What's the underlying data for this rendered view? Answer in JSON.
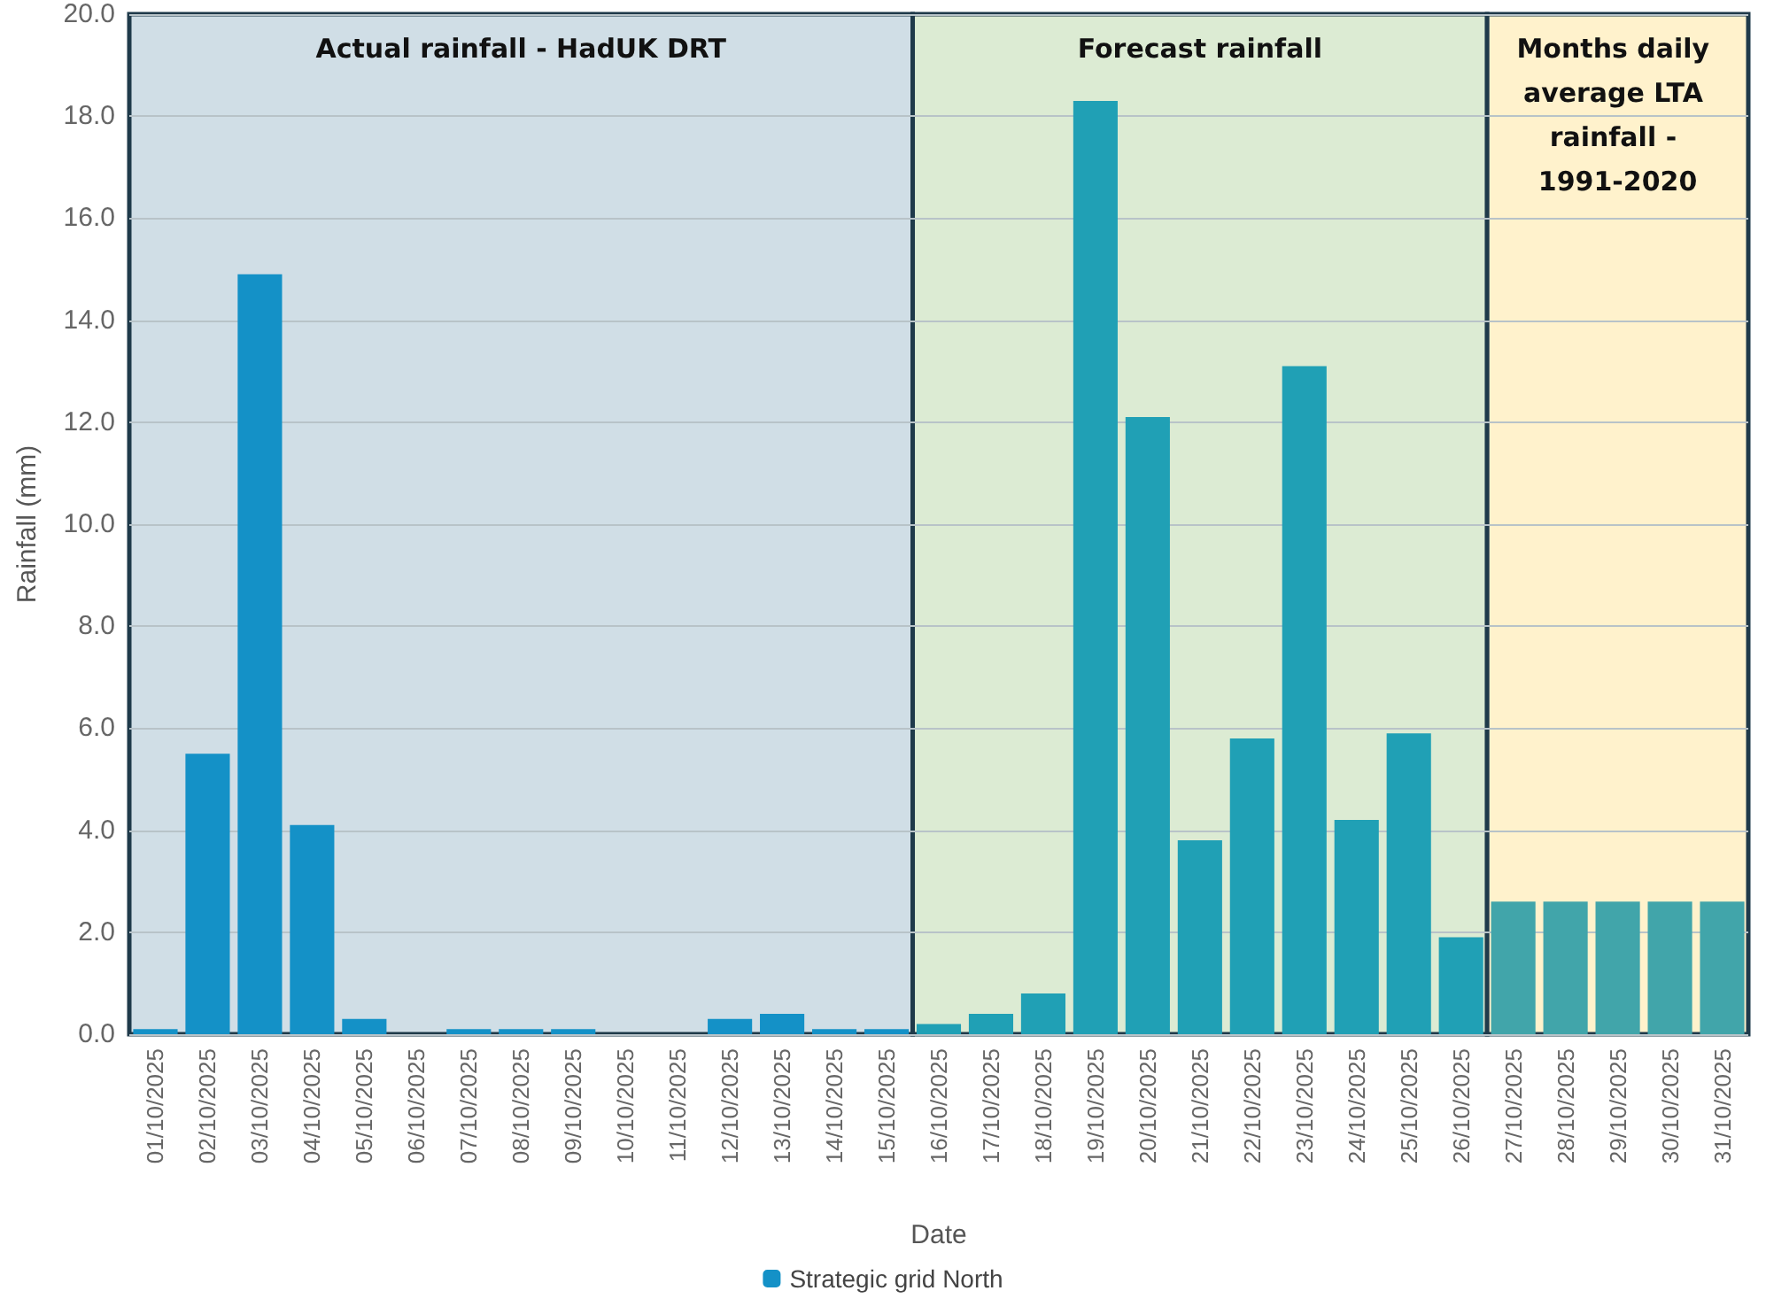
{
  "chart_data": {
    "type": "bar",
    "xlabel": "Date",
    "ylabel": "Rainfall (mm)",
    "categories": [
      "01/10/2025",
      "02/10/2025",
      "03/10/2025",
      "04/10/2025",
      "05/10/2025",
      "06/10/2025",
      "07/10/2025",
      "08/10/2025",
      "09/10/2025",
      "10/10/2025",
      "11/10/2025",
      "12/10/2025",
      "13/10/2025",
      "14/10/2025",
      "15/10/2025",
      "16/10/2025",
      "17/10/2025",
      "18/10/2025",
      "19/10/2025",
      "20/10/2025",
      "21/10/2025",
      "22/10/2025",
      "23/10/2025",
      "24/10/2025",
      "25/10/2025",
      "26/10/2025",
      "27/10/2025",
      "28/10/2025",
      "29/10/2025",
      "30/10/2025",
      "31/10/2025"
    ],
    "series": [
      {
        "name": "Strategic grid North",
        "values": [
          0.1,
          5.5,
          14.9,
          4.1,
          0.3,
          0,
          0.1,
          0.1,
          0.1,
          0,
          0,
          0.3,
          0.4,
          0.1,
          0.1,
          0.2,
          0.4,
          0.8,
          18.3,
          12.1,
          3.8,
          5.8,
          13.1,
          4.2,
          5.9,
          1.9,
          2.6,
          2.6,
          2.6,
          2.6,
          2.6
        ],
        "colors": [
          "#1491c7",
          "#1491c7",
          "#1491c7",
          "#1491c7",
          "#1491c7",
          "#1491c7",
          "#1491c7",
          "#1491c7",
          "#1491c7",
          "#1491c7",
          "#1491c7",
          "#1491c7",
          "#1491c7",
          "#1491c7",
          "#1491c7",
          "#20a0b5",
          "#20a0b5",
          "#20a0b5",
          "#20a0b5",
          "#20a0b5",
          "#20a0b5",
          "#20a0b5",
          "#20a0b5",
          "#20a0b5",
          "#20a0b5",
          "#20a0b5",
          "#41a5aa",
          "#41a5aa",
          "#41a5aa",
          "#41a5aa",
          "#41a5aa"
        ]
      }
    ],
    "ylim": [
      0,
      20
    ],
    "yticks": [
      {
        "value": 0,
        "label": "0.0"
      },
      {
        "value": 2,
        "label": "2.0"
      },
      {
        "value": 4,
        "label": "4.0"
      },
      {
        "value": 6,
        "label": "6.0"
      },
      {
        "value": 8,
        "label": "8.0"
      },
      {
        "value": 10,
        "label": "10.0"
      },
      {
        "value": 12,
        "label": "12.0"
      },
      {
        "value": 14,
        "label": "14.0"
      },
      {
        "value": 16,
        "label": "16.0"
      },
      {
        "value": 18,
        "label": "18.0"
      },
      {
        "value": 20,
        "label": "20.0"
      }
    ],
    "grid": "y",
    "legend": "bottom",
    "bands": [
      {
        "axis": "x",
        "from": "01/10/2025",
        "to": "15/10/2025",
        "label": "Actual rainfall - HadUK DRT",
        "color": "#d0dee6"
      },
      {
        "axis": "x",
        "from": "16/10/2025",
        "to": "26/10/2025",
        "label": "Forecast rainfall",
        "color": "#dcebd3"
      },
      {
        "axis": "x",
        "from": "27/10/2025",
        "to": "31/10/2025",
        "label": "Months daily average LTA rainfall - 1991-2020",
        "color": "#fff2cc"
      }
    ]
  }
}
